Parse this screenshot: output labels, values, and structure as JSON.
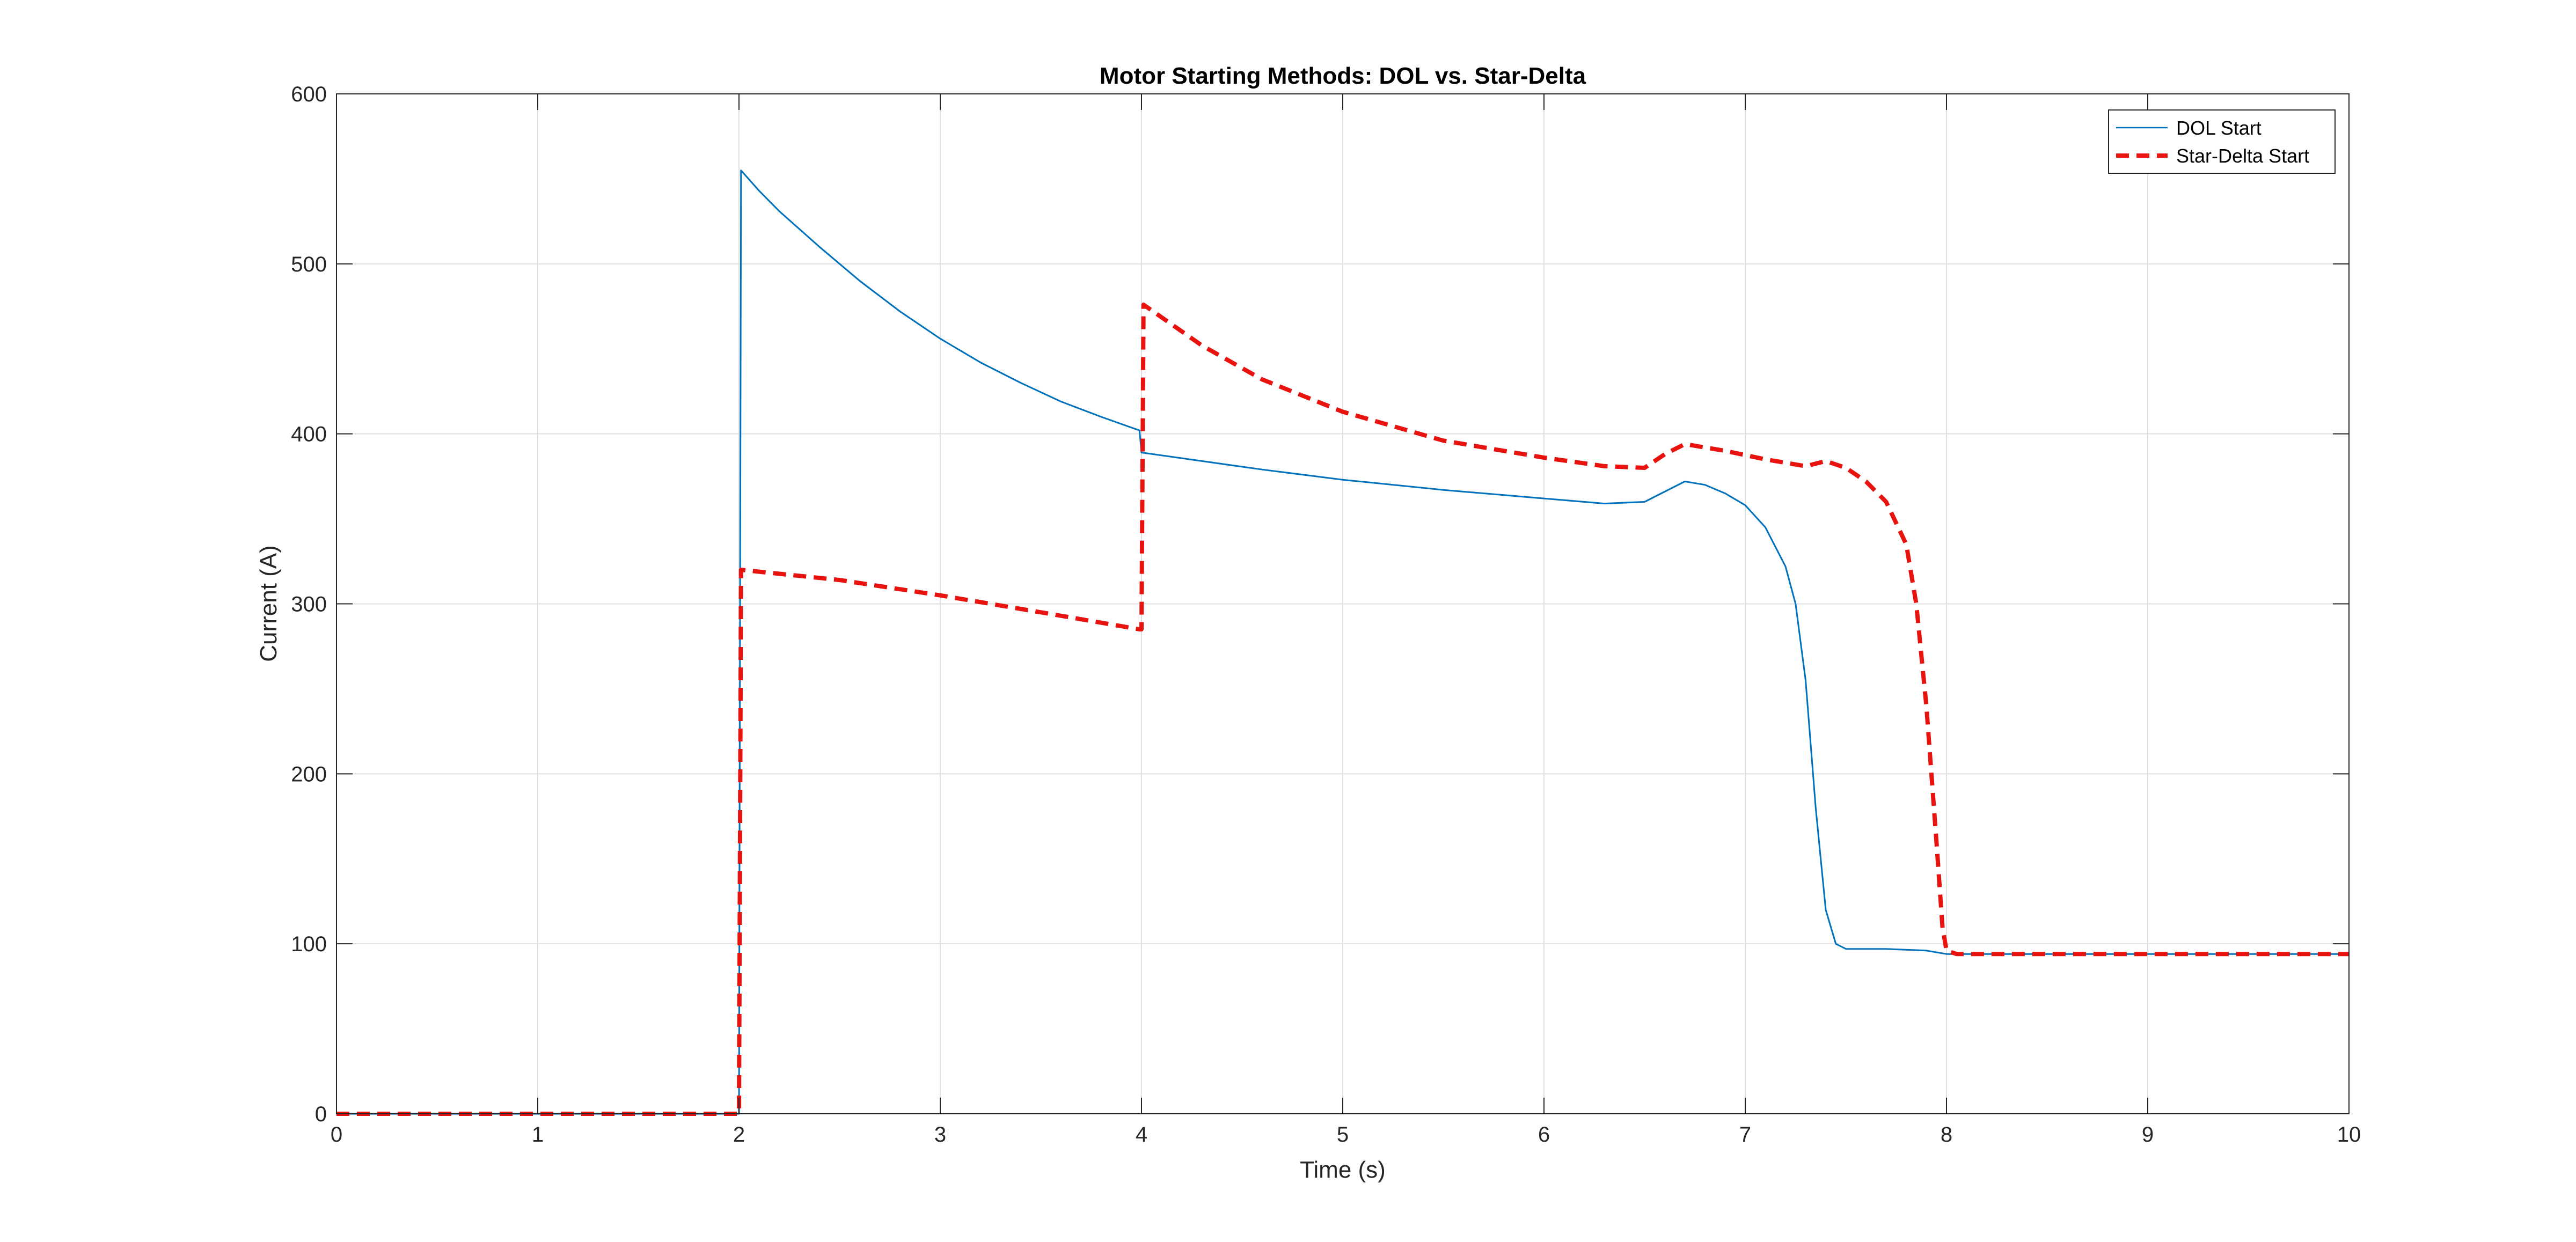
{
  "chart_data": {
    "type": "line",
    "title": "Motor Starting Methods: DOL vs. Star-Delta",
    "xlabel": "Time (s)",
    "ylabel": "Current (A)",
    "xlim": [
      0,
      10
    ],
    "ylim": [
      0,
      600
    ],
    "xticks": [
      0,
      1,
      2,
      3,
      4,
      5,
      6,
      7,
      8,
      9,
      10
    ],
    "yticks": [
      0,
      100,
      200,
      300,
      400,
      500,
      600
    ],
    "grid": true,
    "legend_position": "top-right",
    "series": [
      {
        "name": "DOL Start",
        "color": "#0072BD",
        "style": "solid",
        "points": [
          [
            0,
            0
          ],
          [
            1.99,
            0
          ],
          [
            2.0,
            0
          ],
          [
            2.01,
            555
          ],
          [
            2.1,
            543
          ],
          [
            2.2,
            531
          ],
          [
            2.4,
            510
          ],
          [
            2.6,
            490
          ],
          [
            2.8,
            472
          ],
          [
            3.0,
            456
          ],
          [
            3.2,
            442
          ],
          [
            3.4,
            430
          ],
          [
            3.6,
            419
          ],
          [
            3.8,
            410
          ],
          [
            3.99,
            402
          ],
          [
            4.0,
            389
          ],
          [
            4.3,
            384
          ],
          [
            4.6,
            379
          ],
          [
            5.0,
            373
          ],
          [
            5.5,
            367
          ],
          [
            6.0,
            362
          ],
          [
            6.3,
            359
          ],
          [
            6.5,
            360
          ],
          [
            6.6,
            366
          ],
          [
            6.7,
            372
          ],
          [
            6.8,
            370
          ],
          [
            6.9,
            365
          ],
          [
            7.0,
            358
          ],
          [
            7.1,
            345
          ],
          [
            7.2,
            322
          ],
          [
            7.25,
            300
          ],
          [
            7.3,
            255
          ],
          [
            7.35,
            180
          ],
          [
            7.4,
            120
          ],
          [
            7.45,
            100
          ],
          [
            7.5,
            97
          ],
          [
            7.7,
            97
          ],
          [
            7.9,
            96
          ],
          [
            8.0,
            94
          ],
          [
            8.05,
            94
          ],
          [
            10,
            94
          ]
        ]
      },
      {
        "name": "Star-Delta Start",
        "color": "#E8130F",
        "style": "dashed",
        "points": [
          [
            0,
            0
          ],
          [
            1.99,
            0
          ],
          [
            2.0,
            0
          ],
          [
            2.01,
            320
          ],
          [
            2.5,
            314
          ],
          [
            3.0,
            305
          ],
          [
            3.5,
            295
          ],
          [
            3.99,
            285
          ],
          [
            4.0,
            285
          ],
          [
            4.01,
            476
          ],
          [
            4.3,
            452
          ],
          [
            4.6,
            432
          ],
          [
            5.0,
            413
          ],
          [
            5.5,
            396
          ],
          [
            6.0,
            386
          ],
          [
            6.3,
            381
          ],
          [
            6.5,
            380
          ],
          [
            6.6,
            388
          ],
          [
            6.7,
            394
          ],
          [
            6.9,
            390
          ],
          [
            7.1,
            385
          ],
          [
            7.3,
            381
          ],
          [
            7.4,
            384
          ],
          [
            7.5,
            380
          ],
          [
            7.6,
            372
          ],
          [
            7.7,
            360
          ],
          [
            7.8,
            335
          ],
          [
            7.85,
            300
          ],
          [
            7.9,
            240
          ],
          [
            7.95,
            160
          ],
          [
            7.98,
            110
          ],
          [
            8.0,
            96
          ],
          [
            8.05,
            94
          ],
          [
            10,
            94
          ]
        ]
      }
    ]
  }
}
